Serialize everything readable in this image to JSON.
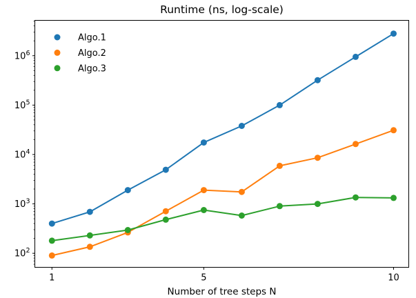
{
  "chart_data": {
    "type": "line",
    "title": "Runtime (ns, log-scale)",
    "xlabel": "Number of tree steps N",
    "ylabel": "",
    "x": [
      1,
      2,
      3,
      4,
      5,
      6,
      7,
      8,
      9,
      10
    ],
    "x_tick_values": [
      1,
      5,
      10
    ],
    "x_tick_labels": [
      "1",
      "5",
      "10"
    ],
    "y_scale": "log",
    "y_tick_values": [
      100,
      1000,
      10000,
      100000,
      1000000
    ],
    "xlim": [
      0.55,
      10.4
    ],
    "ylim": [
      52,
      5200000
    ],
    "grid": false,
    "marker": "circle",
    "legend": {
      "position": "upper-left",
      "frame": false,
      "entries": [
        "Algo.1",
        "Algo.2",
        "Algo.3"
      ]
    },
    "series": [
      {
        "name": "Algo.1",
        "color": "#1f77b4",
        "values": [
          400,
          690,
          1900,
          4900,
          17500,
          38000,
          100000,
          320000,
          950000,
          2800000
        ]
      },
      {
        "name": "Algo.2",
        "color": "#ff7f0e",
        "values": [
          90,
          135,
          265,
          710,
          1900,
          1750,
          5900,
          8600,
          16300,
          31000
        ]
      },
      {
        "name": "Algo.3",
        "color": "#2ca02c",
        "values": [
          180,
          230,
          295,
          480,
          750,
          580,
          900,
          1000,
          1350,
          1320
        ]
      }
    ],
    "colors": {
      "text": "#000000",
      "spine": "#000000",
      "background": "#ffffff"
    }
  }
}
